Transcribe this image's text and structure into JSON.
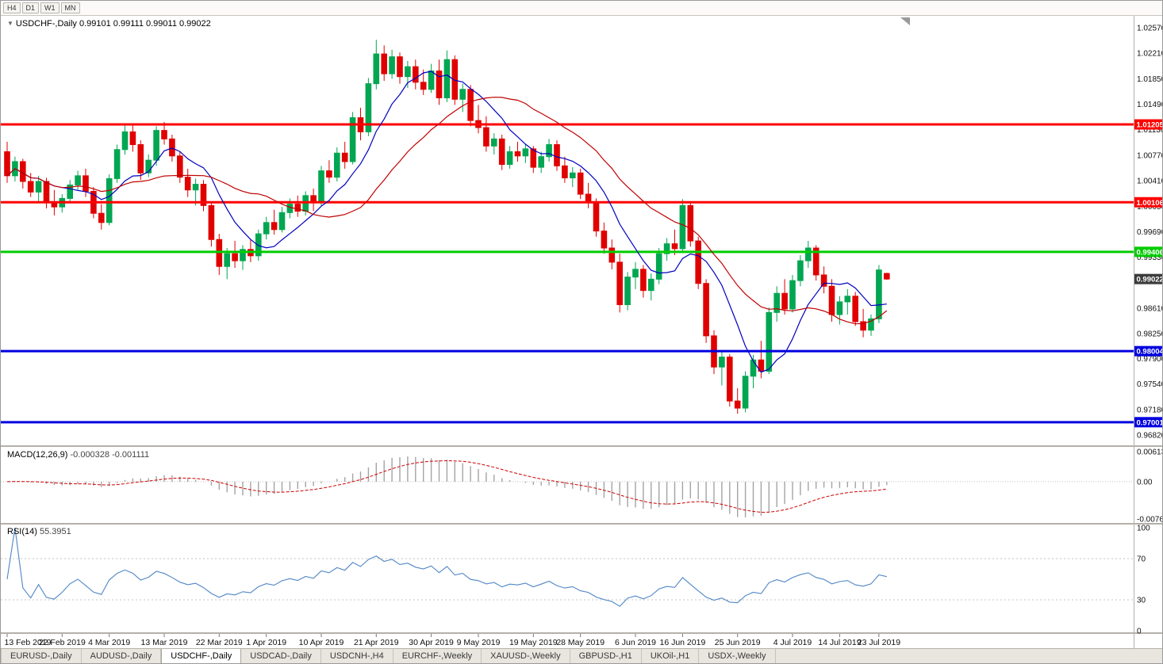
{
  "toolbar": {
    "timeframes": [
      "H4",
      "D1",
      "W1",
      "MN"
    ]
  },
  "chart": {
    "title_symbol": "USDCHF-,Daily",
    "title_ohlc": "0.99101 0.99111 0.99011 0.99022"
  },
  "chart_data": {
    "type": "candlestick",
    "symbol": "USDCHF",
    "timeframe": "Daily",
    "candles_format": "[open, high, low, close]",
    "price_axis": {
      "max": 1.0257,
      "min": 0.9682,
      "labels": [
        "1.02570",
        "1.02210",
        "1.01850",
        "1.01490",
        "1.01130",
        "1.00770",
        "1.00410",
        "1.00050",
        "0.99690",
        "0.99330",
        "0.98610",
        "0.98250",
        "0.97900",
        "0.97540",
        "0.97180",
        "0.96820"
      ]
    },
    "x_ticks": [
      {
        "index": 0,
        "label": "13 Feb 2019"
      },
      {
        "index": 7,
        "label": "22 Feb 2019"
      },
      {
        "index": 13,
        "label": "4 Mar 2019"
      },
      {
        "index": 20,
        "label": "13 Mar 2019"
      },
      {
        "index": 27,
        "label": "22 Mar 2019"
      },
      {
        "index": 33,
        "label": "1 Apr 2019"
      },
      {
        "index": 40,
        "label": "10 Apr 2019"
      },
      {
        "index": 47,
        "label": "21 Apr 2019"
      },
      {
        "index": 54,
        "label": "30 Apr 2019"
      },
      {
        "index": 60,
        "label": "9 May 2019"
      },
      {
        "index": 67,
        "label": "19 May 2019"
      },
      {
        "index": 73,
        "label": "28 May 2019"
      },
      {
        "index": 80,
        "label": "6 Jun 2019"
      },
      {
        "index": 86,
        "label": "16 Jun 2019"
      },
      {
        "index": 93,
        "label": "25 Jun 2019"
      },
      {
        "index": 100,
        "label": "4 Jul 2019"
      },
      {
        "index": 106,
        "label": "14 Jul 2019"
      },
      {
        "index": 111,
        "label": "23 Jul 2019"
      }
    ],
    "candles": [
      [
        1.0082,
        1.0096,
        1.0038,
        1.0048
      ],
      [
        1.0048,
        1.0075,
        1.004,
        1.0068
      ],
      [
        1.0068,
        1.0072,
        1.003,
        1.004
      ],
      [
        1.004,
        1.0052,
        1.0018,
        1.0025
      ],
      [
        1.0025,
        1.0048,
        1.0012,
        1.004
      ],
      [
        1.004,
        1.0045,
        1.0002,
        1.001
      ],
      [
        1.001,
        1.0028,
        0.9992,
        1.0004
      ],
      [
        1.0004,
        1.0022,
        0.9996,
        1.0016
      ],
      [
        1.0016,
        1.0042,
        1.001,
        1.0035
      ],
      [
        1.0035,
        1.0055,
        1.0028,
        1.0048
      ],
      [
        1.0048,
        1.0058,
        1.0018,
        1.0026
      ],
      [
        1.0026,
        1.0032,
        0.9988,
        0.9995
      ],
      [
        0.9995,
        1.0008,
        0.9972,
        0.9982
      ],
      [
        0.9982,
        1.005,
        0.9978,
        1.0044
      ],
      [
        1.0044,
        1.0092,
        1.0038,
        1.0085
      ],
      [
        1.0085,
        1.0122,
        1.0078,
        1.011
      ],
      [
        1.011,
        1.0121,
        1.0082,
        1.0092
      ],
      [
        1.0092,
        1.0098,
        1.0042,
        1.0052
      ],
      [
        1.0052,
        1.0078,
        1.0046,
        1.007
      ],
      [
        1.007,
        1.0118,
        1.0062,
        1.0112
      ],
      [
        1.0112,
        1.0124,
        1.0092,
        1.01
      ],
      [
        1.01,
        1.0106,
        1.0068,
        1.0076
      ],
      [
        1.0076,
        1.0082,
        1.0038,
        1.0046
      ],
      [
        1.0046,
        1.0058,
        1.0018,
        1.0028
      ],
      [
        1.0028,
        1.0044,
        1.0006,
        1.0036
      ],
      [
        1.0036,
        1.0042,
        0.9998,
        1.0006
      ],
      [
        1.0006,
        1.0012,
        0.9948,
        0.9958
      ],
      [
        0.9958,
        0.9966,
        0.9908,
        0.992
      ],
      [
        0.992,
        0.9946,
        0.9902,
        0.9938
      ],
      [
        0.9938,
        0.9956,
        0.9918,
        0.9928
      ],
      [
        0.9928,
        0.995,
        0.9915,
        0.9944
      ],
      [
        0.9944,
        0.9958,
        0.9926,
        0.9935
      ],
      [
        0.9935,
        0.9972,
        0.9928,
        0.9966
      ],
      [
        0.9966,
        0.999,
        0.9958,
        0.9982
      ],
      [
        0.9982,
        1.0,
        0.9965,
        0.9972
      ],
      [
        0.9972,
        1.0004,
        0.9968,
        0.9996
      ],
      [
        0.9996,
        1.0016,
        0.9988,
        1.0008
      ],
      [
        1.0008,
        1.002,
        0.999,
        0.9998
      ],
      [
        0.9998,
        1.0026,
        0.9992,
        1.002
      ],
      [
        1.002,
        1.003,
        0.9998,
        1.001
      ],
      [
        1.001,
        1.0062,
        1.0005,
        1.0055
      ],
      [
        1.0055,
        1.007,
        1.0038,
        1.0046
      ],
      [
        1.0046,
        1.0088,
        1.004,
        1.008
      ],
      [
        1.008,
        1.0096,
        1.0058,
        1.0068
      ],
      [
        1.0068,
        1.0138,
        1.0064,
        1.013
      ],
      [
        1.013,
        1.0144,
        1.0098,
        1.011
      ],
      [
        1.011,
        1.0186,
        1.0104,
        1.0178
      ],
      [
        1.0178,
        1.024,
        1.017,
        1.022
      ],
      [
        1.022,
        1.0232,
        1.0182,
        1.0192
      ],
      [
        1.0192,
        1.0226,
        1.0185,
        1.0216
      ],
      [
        1.0216,
        1.0222,
        1.0178,
        1.0188
      ],
      [
        1.0188,
        1.021,
        1.0172,
        1.0202
      ],
      [
        1.0202,
        1.0212,
        1.017,
        1.018
      ],
      [
        1.018,
        1.0198,
        1.0162,
        1.017
      ],
      [
        1.017,
        1.0206,
        1.0165,
        1.0196
      ],
      [
        1.0196,
        1.0212,
        1.0148,
        1.0158
      ],
      [
        1.0158,
        1.0225,
        1.0152,
        1.0212
      ],
      [
        1.0212,
        1.0218,
        1.0148,
        1.0156
      ],
      [
        1.0156,
        1.0178,
        1.0138,
        1.017
      ],
      [
        1.017,
        1.0176,
        1.0118,
        1.0126
      ],
      [
        1.0126,
        1.0148,
        1.0108,
        1.0116
      ],
      [
        1.0116,
        1.0132,
        1.0082,
        1.009
      ],
      [
        1.009,
        1.0108,
        1.0078,
        1.01
      ],
      [
        1.01,
        1.0106,
        1.0056,
        1.0064
      ],
      [
        1.0064,
        1.009,
        1.0058,
        1.0082
      ],
      [
        1.0082,
        1.0096,
        1.0068,
        1.0076
      ],
      [
        1.0076,
        1.0092,
        1.0066,
        1.0086
      ],
      [
        1.0086,
        1.009,
        1.0052,
        1.006
      ],
      [
        1.006,
        1.0082,
        1.0052,
        1.0075
      ],
      [
        1.0075,
        1.01,
        1.0068,
        1.0092
      ],
      [
        1.0092,
        1.0098,
        1.0055,
        1.0062
      ],
      [
        1.0062,
        1.0075,
        1.0038,
        1.0045
      ],
      [
        1.0045,
        1.006,
        1.0032,
        1.0052
      ],
      [
        1.0052,
        1.0058,
        1.0015,
        1.0022
      ],
      [
        1.0022,
        1.0038,
        1.0002,
        1.001
      ],
      [
        1.001,
        1.0016,
        0.9962,
        0.997
      ],
      [
        0.997,
        0.9982,
        0.9938,
        0.9946
      ],
      [
        0.9946,
        0.9958,
        0.9916,
        0.9926
      ],
      [
        0.9926,
        0.9938,
        0.9855,
        0.9866
      ],
      [
        0.9866,
        0.9912,
        0.9858,
        0.9905
      ],
      [
        0.9905,
        0.9926,
        0.9888,
        0.9916
      ],
      [
        0.9916,
        0.9922,
        0.9876,
        0.9886
      ],
      [
        0.9886,
        0.991,
        0.9872,
        0.9902
      ],
      [
        0.9902,
        0.9946,
        0.9895,
        0.9938
      ],
      [
        0.9938,
        0.996,
        0.9928,
        0.9952
      ],
      [
        0.9952,
        0.9972,
        0.9936,
        0.9945
      ],
      [
        0.9945,
        1.0015,
        0.994,
        1.0006
      ],
      [
        1.0006,
        1.001,
        0.9948,
        0.9956
      ],
      [
        0.9956,
        0.9962,
        0.9888,
        0.9896
      ],
      [
        0.9896,
        0.9902,
        0.9812,
        0.9822
      ],
      [
        0.9822,
        0.983,
        0.9768,
        0.9778
      ],
      [
        0.9778,
        0.98,
        0.9752,
        0.9792
      ],
      [
        0.9792,
        0.9796,
        0.9722,
        0.973
      ],
      [
        0.973,
        0.9748,
        0.9712,
        0.972
      ],
      [
        0.972,
        0.9772,
        0.9714,
        0.9765
      ],
      [
        0.9765,
        0.9795,
        0.9748,
        0.9788
      ],
      [
        0.9788,
        0.9815,
        0.9762,
        0.9772
      ],
      [
        0.9772,
        0.9862,
        0.9768,
        0.9855
      ],
      [
        0.9855,
        0.9892,
        0.9842,
        0.9882
      ],
      [
        0.9882,
        0.9902,
        0.9852,
        0.986
      ],
      [
        0.986,
        0.9908,
        0.9855,
        0.99
      ],
      [
        0.99,
        0.9936,
        0.9892,
        0.9928
      ],
      [
        0.9928,
        0.9956,
        0.9918,
        0.9946
      ],
      [
        0.9946,
        0.995,
        0.99,
        0.9908
      ],
      [
        0.9908,
        0.992,
        0.9882,
        0.9892
      ],
      [
        0.9892,
        0.9902,
        0.9842,
        0.9852
      ],
      [
        0.9852,
        0.9878,
        0.9838,
        0.987
      ],
      [
        0.987,
        0.9888,
        0.9852,
        0.9878
      ],
      [
        0.9878,
        0.9884,
        0.9836,
        0.9842
      ],
      [
        0.9842,
        0.986,
        0.982,
        0.983
      ],
      [
        0.983,
        0.9852,
        0.9822,
        0.9846
      ],
      [
        0.9846,
        0.9922,
        0.984,
        0.9915
      ],
      [
        0.99101,
        0.99111,
        0.99011,
        0.99022
      ]
    ],
    "levels": [
      {
        "value": 1.01205,
        "label": "1.01205",
        "color": "#FF0000",
        "width": 3
      },
      {
        "value": 1.00106,
        "label": "1.00106",
        "color": "#FF0000",
        "width": 3
      },
      {
        "value": 0.99406,
        "label": "0.99406",
        "color": "#00CC00",
        "width": 3
      },
      {
        "value": 0.98004,
        "label": "0.98004",
        "color": "#0000E0",
        "width": 3
      },
      {
        "value": 0.97001,
        "label": "0.97001",
        "color": "#0000E0",
        "width": 3
      }
    ],
    "current_price": {
      "value": 0.99022,
      "label": "0.99022",
      "color": "#3c3c3c"
    },
    "indicators": {
      "ma_fast_period": 8,
      "ma_slow_period": 20,
      "macd": {
        "label": "MACD(12,26,9)",
        "values_text": "-0.000328 -0.001111",
        "range": [
          -0.00761,
          0.00613
        ],
        "axis": [
          {
            "v": 0.00613,
            "label": "0.00613"
          },
          {
            "v": 0,
            "label": "0.00"
          },
          {
            "v": -0.00761,
            "label": "-0.00761"
          }
        ]
      },
      "rsi": {
        "label": "RSI(14)",
        "value_text": "55.3951",
        "range": [
          0,
          100
        ],
        "levels": [
          70,
          30
        ],
        "axis": [
          {
            "v": 100,
            "label": "100"
          },
          {
            "v": 70,
            "label": "70"
          },
          {
            "v": 30,
            "label": "30"
          },
          {
            "v": 0,
            "label": "0"
          }
        ]
      }
    },
    "colors": {
      "bull": "#00A651",
      "bear": "#E00000",
      "ma_fast": "#0000C0",
      "ma_slow": "#C00000",
      "macd_hist": "#a4a4a4",
      "macd_signal": "#CC0000",
      "rsi": "#4F86C6",
      "grid_dash": "#c4c4c4",
      "axis_text": "#111111"
    }
  },
  "tabs": {
    "active_index": 2,
    "items": [
      {
        "label": "EURUSD-,Daily"
      },
      {
        "label": "AUDUSD-,Daily"
      },
      {
        "label": "USDCHF-,Daily"
      },
      {
        "label": "USDCAD-,Daily"
      },
      {
        "label": "USDCNH-,H4"
      },
      {
        "label": "EURCHF-,Weekly"
      },
      {
        "label": "XAUUSD-,Weekly"
      },
      {
        "label": "GBPUSD-,H1"
      },
      {
        "label": "UKOil-,H1"
      },
      {
        "label": "USDX-,Weekly"
      }
    ]
  }
}
